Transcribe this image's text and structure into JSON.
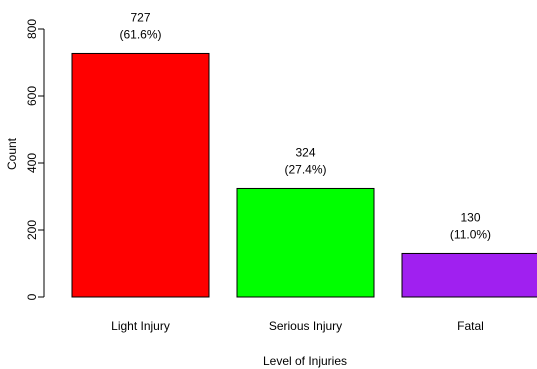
{
  "chart_data": {
    "type": "bar",
    "title": "",
    "xlabel": "Level of Injuries",
    "ylabel": "Count",
    "ylim": [
      0,
      800
    ],
    "yticks": [
      0,
      200,
      400,
      600,
      800
    ],
    "categories": [
      "Light Injury",
      "Serious Injury",
      "Fatal"
    ],
    "values": [
      727,
      324,
      130
    ],
    "percent_labels": [
      "(61.6%)",
      "(27.4%)",
      "(11.0%)"
    ],
    "colors": [
      "#ff0000",
      "#00ff00",
      "#a020f0"
    ],
    "grid": false,
    "legend": "none"
  }
}
